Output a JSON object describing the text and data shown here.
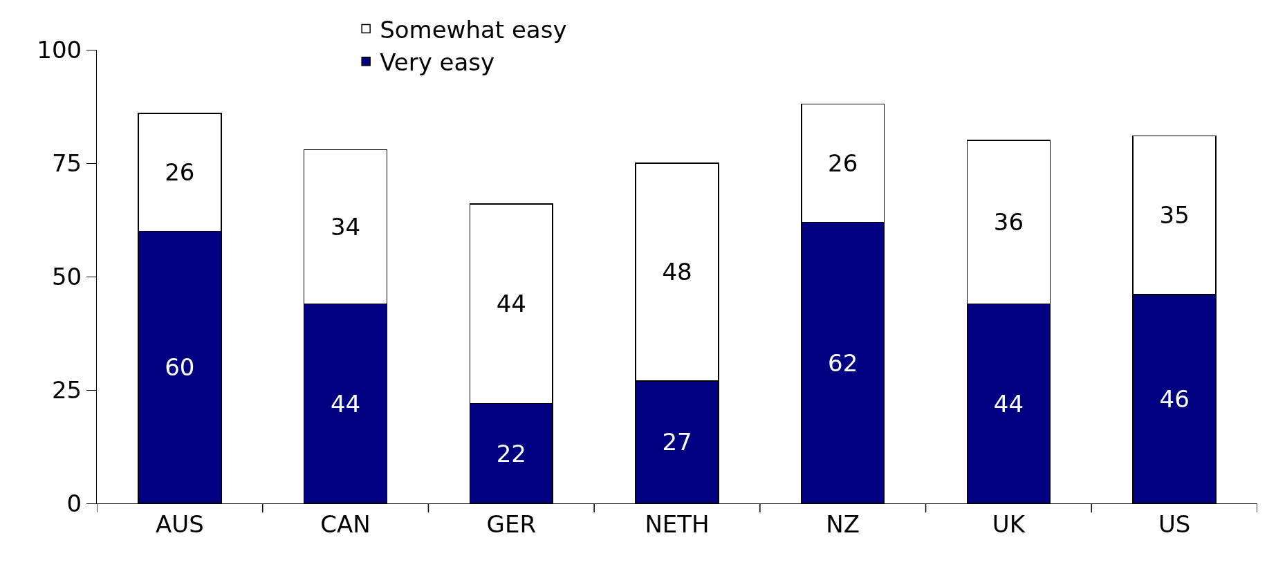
{
  "chart_data": {
    "type": "bar",
    "stacked": true,
    "categories": [
      "AUS",
      "CAN",
      "GER",
      "NETH",
      "NZ",
      "UK",
      "US"
    ],
    "series": [
      {
        "name": "Very easy",
        "color": "#000080",
        "values": [
          60,
          44,
          22,
          27,
          62,
          44,
          46
        ]
      },
      {
        "name": "Somewhat easy",
        "color": "#ffffff",
        "values": [
          26,
          34,
          44,
          48,
          26,
          36,
          35
        ]
      }
    ],
    "ylim": [
      0,
      100
    ],
    "yticks": [
      0,
      25,
      50,
      75,
      100
    ],
    "grid": false,
    "legend": "top",
    "data_labels": true
  }
}
